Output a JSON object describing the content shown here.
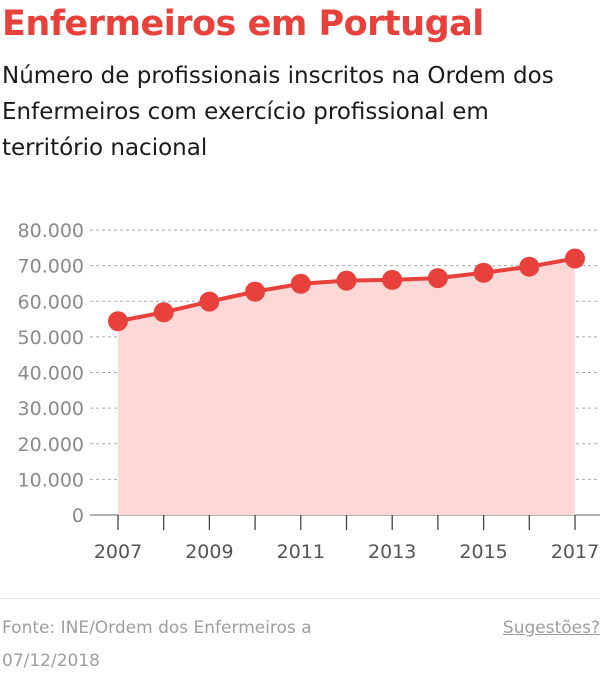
{
  "title": "Enfermeiros em Portugal",
  "subtitle": "Número de profissionais inscritos na Ordem dos Enfermeiros com exercício profissional em território nacional",
  "source": "Fonte: INE/Ordem dos Enfermeiros a 07/12/2018",
  "suggest_label": "Sugestões?",
  "colors": {
    "accent": "#e8413b",
    "fill": "#fdd8d6",
    "text": "#1a1a1a",
    "axis_text": "#8a8a8a",
    "grid": "#aaaaaa",
    "muted": "#9e9e9e"
  },
  "chart_data": {
    "type": "area",
    "x": [
      2007,
      2008,
      2009,
      2010,
      2011,
      2012,
      2013,
      2014,
      2015,
      2016,
      2017
    ],
    "x_tick_labels": [
      "2007",
      "2009",
      "2011",
      "2013",
      "2015",
      "2017"
    ],
    "y_tick_labels": [
      "0",
      "10.000",
      "20.000",
      "30.000",
      "40.000",
      "50.000",
      "60.000",
      "70.000",
      "80.000"
    ],
    "series": [
      {
        "name": "",
        "values": [
          54400,
          56900,
          59900,
          62700,
          64900,
          65800,
          66000,
          66500,
          68000,
          69700,
          72000
        ]
      }
    ],
    "ylim": [
      0,
      80000
    ],
    "y_ticks": [
      0,
      10000,
      20000,
      30000,
      40000,
      50000,
      60000,
      70000,
      80000
    ],
    "grid": true,
    "markers": true,
    "xlabel": "",
    "ylabel": ""
  }
}
